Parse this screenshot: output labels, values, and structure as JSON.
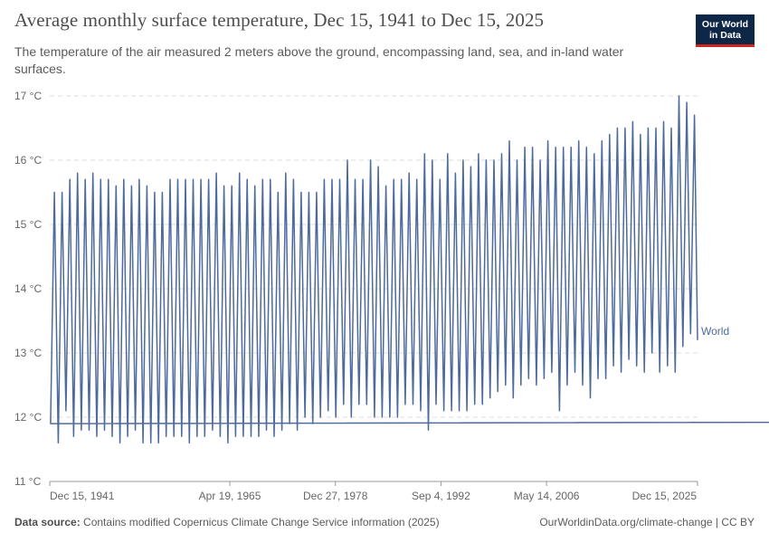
{
  "header": {
    "title": "Average monthly surface temperature, Dec 15, 1941 to Dec 15, 2025",
    "subtitle": "The temperature of the air measured 2 meters above the ground, encompassing land, sea, and in-land water surfaces."
  },
  "logo": {
    "line1": "Our World",
    "line2": "in Data",
    "background": "#0f2747",
    "accent": "#ce261e"
  },
  "footer": {
    "source_label": "Data source:",
    "source_text": "Contains modified Copernicus Climate Change Service information (2025)",
    "link_text": "OurWorldinData.org/climate-change | CC BY"
  },
  "chart_data": {
    "type": "line",
    "xlabel": "",
    "ylabel": "",
    "ylim": [
      11,
      17
    ],
    "grid": true,
    "line_color": "#4c6a9c",
    "y_ticks": [
      11,
      12,
      13,
      14,
      15,
      16,
      17
    ],
    "y_tick_labels": [
      "11 °C",
      "12 °C",
      "13 °C",
      "14 °C",
      "15 °C",
      "16 °C",
      "17 °C"
    ],
    "x_ticks": [
      {
        "label": "Dec 15, 1941",
        "year": 1941.95
      },
      {
        "label": "Apr 19, 1965",
        "year": 1965.3
      },
      {
        "label": "Dec 27, 1978",
        "year": 1978.99
      },
      {
        "label": "Sep 4, 1992",
        "year": 1992.68
      },
      {
        "label": "May 14, 2006",
        "year": 2006.37
      },
      {
        "label": "Dec 15, 2025",
        "year": 2025.95
      }
    ],
    "x_range": [
      "Dec 15, 1941",
      "Dec 15, 2025"
    ],
    "series": [
      {
        "name": "World",
        "monthly_pattern": "12 °C minimum around Jan, peak in Jul/Aug",
        "annual_peaks": [
          {
            "year": 1942,
            "value": 15.5
          },
          {
            "year": 1943,
            "value": 15.5
          },
          {
            "year": 1944,
            "value": 15.7
          },
          {
            "year": 1945,
            "value": 15.8
          },
          {
            "year": 1946,
            "value": 15.7
          },
          {
            "year": 1947,
            "value": 15.8
          },
          {
            "year": 1948,
            "value": 15.7
          },
          {
            "year": 1949,
            "value": 15.7
          },
          {
            "year": 1950,
            "value": 15.6
          },
          {
            "year": 1951,
            "value": 15.7
          },
          {
            "year": 1952,
            "value": 15.6
          },
          {
            "year": 1953,
            "value": 15.7
          },
          {
            "year": 1954,
            "value": 15.6
          },
          {
            "year": 1955,
            "value": 15.5
          },
          {
            "year": 1956,
            "value": 15.5
          },
          {
            "year": 1957,
            "value": 15.7
          },
          {
            "year": 1958,
            "value": 15.7
          },
          {
            "year": 1959,
            "value": 15.7
          },
          {
            "year": 1960,
            "value": 15.7
          },
          {
            "year": 1961,
            "value": 15.7
          },
          {
            "year": 1962,
            "value": 15.7
          },
          {
            "year": 1963,
            "value": 15.8
          },
          {
            "year": 1964,
            "value": 15.6
          },
          {
            "year": 1965,
            "value": 15.6
          },
          {
            "year": 1966,
            "value": 15.8
          },
          {
            "year": 1967,
            "value": 15.7
          },
          {
            "year": 1968,
            "value": 15.6
          },
          {
            "year": 1969,
            "value": 15.7
          },
          {
            "year": 1970,
            "value": 15.7
          },
          {
            "year": 1971,
            "value": 15.5
          },
          {
            "year": 1972,
            "value": 15.8
          },
          {
            "year": 1973,
            "value": 15.7
          },
          {
            "year": 1974,
            "value": 15.5
          },
          {
            "year": 1975,
            "value": 15.5
          },
          {
            "year": 1976,
            "value": 15.5
          },
          {
            "year": 1977,
            "value": 15.7
          },
          {
            "year": 1978,
            "value": 15.7
          },
          {
            "year": 1979,
            "value": 15.7
          },
          {
            "year": 1980,
            "value": 16.0
          },
          {
            "year": 1981,
            "value": 15.7
          },
          {
            "year": 1982,
            "value": 15.7
          },
          {
            "year": 1983,
            "value": 16.0
          },
          {
            "year": 1984,
            "value": 15.9
          },
          {
            "year": 1985,
            "value": 15.6
          },
          {
            "year": 1986,
            "value": 15.7
          },
          {
            "year": 1987,
            "value": 15.7
          },
          {
            "year": 1988,
            "value": 15.8
          },
          {
            "year": 1989,
            "value": 15.7
          },
          {
            "year": 1990,
            "value": 16.1
          },
          {
            "year": 1991,
            "value": 16.0
          },
          {
            "year": 1992,
            "value": 15.7
          },
          {
            "year": 1993,
            "value": 16.1
          },
          {
            "year": 1994,
            "value": 15.8
          },
          {
            "year": 1995,
            "value": 16.0
          },
          {
            "year": 1996,
            "value": 15.9
          },
          {
            "year": 1997,
            "value": 16.1
          },
          {
            "year": 1998,
            "value": 16.0
          },
          {
            "year": 1999,
            "value": 16.0
          },
          {
            "year": 2000,
            "value": 16.1
          },
          {
            "year": 2001,
            "value": 16.3
          },
          {
            "year": 2002,
            "value": 16.0
          },
          {
            "year": 2003,
            "value": 16.2
          },
          {
            "year": 2004,
            "value": 16.2
          },
          {
            "year": 2005,
            "value": 16.0
          },
          {
            "year": 2006,
            "value": 16.3
          },
          {
            "year": 2007,
            "value": 16.2
          },
          {
            "year": 2008,
            "value": 16.2
          },
          {
            "year": 2009,
            "value": 16.2
          },
          {
            "year": 2010,
            "value": 16.3
          },
          {
            "year": 2011,
            "value": 16.2
          },
          {
            "year": 2012,
            "value": 16.1
          },
          {
            "year": 2013,
            "value": 16.3
          },
          {
            "year": 2014,
            "value": 16.4
          },
          {
            "year": 2015,
            "value": 16.5
          },
          {
            "year": 2016,
            "value": 16.5
          },
          {
            "year": 2017,
            "value": 16.6
          },
          {
            "year": 2018,
            "value": 16.4
          },
          {
            "year": 2019,
            "value": 16.5
          },
          {
            "year": 2020,
            "value": 16.5
          },
          {
            "year": 2021,
            "value": 16.6
          },
          {
            "year": 2022,
            "value": 16.5
          },
          {
            "year": 2023,
            "value": 17.0
          },
          {
            "year": 2024,
            "value": 16.9
          },
          {
            "year": 2025,
            "value": 16.7
          }
        ],
        "annual_troughs": [
          {
            "year": 1942,
            "value": 11.9
          },
          {
            "year": 1943,
            "value": 11.6
          },
          {
            "year": 1944,
            "value": 12.1
          },
          {
            "year": 1945,
            "value": 11.7
          },
          {
            "year": 1946,
            "value": 11.8
          },
          {
            "year": 1947,
            "value": 11.8
          },
          {
            "year": 1948,
            "value": 11.7
          },
          {
            "year": 1949,
            "value": 11.8
          },
          {
            "year": 1950,
            "value": 11.7
          },
          {
            "year": 1951,
            "value": 11.6
          },
          {
            "year": 1952,
            "value": 11.7
          },
          {
            "year": 1953,
            "value": 11.8
          },
          {
            "year": 1954,
            "value": 11.6
          },
          {
            "year": 1955,
            "value": 11.6
          },
          {
            "year": 1956,
            "value": 11.6
          },
          {
            "year": 1957,
            "value": 11.7
          },
          {
            "year": 1958,
            "value": 11.7
          },
          {
            "year": 1959,
            "value": 11.7
          },
          {
            "year": 1960,
            "value": 11.6
          },
          {
            "year": 1961,
            "value": 11.7
          },
          {
            "year": 1962,
            "value": 11.7
          },
          {
            "year": 1963,
            "value": 11.8
          },
          {
            "year": 1964,
            "value": 11.7
          },
          {
            "year": 1965,
            "value": 11.6
          },
          {
            "year": 1966,
            "value": 11.7
          },
          {
            "year": 1967,
            "value": 11.7
          },
          {
            "year": 1968,
            "value": 11.7
          },
          {
            "year": 1969,
            "value": 11.7
          },
          {
            "year": 1970,
            "value": 11.8
          },
          {
            "year": 1971,
            "value": 11.7
          },
          {
            "year": 1972,
            "value": 11.8
          },
          {
            "year": 1973,
            "value": 11.9
          },
          {
            "year": 1974,
            "value": 11.8
          },
          {
            "year": 1975,
            "value": 12.0
          },
          {
            "year": 1976,
            "value": 11.9
          },
          {
            "year": 1977,
            "value": 12.0
          },
          {
            "year": 1978,
            "value": 12.1
          },
          {
            "year": 1979,
            "value": 12.0
          },
          {
            "year": 1980,
            "value": 12.2
          },
          {
            "year": 1981,
            "value": 12.0
          },
          {
            "year": 1982,
            "value": 12.2
          },
          {
            "year": 1983,
            "value": 12.2
          },
          {
            "year": 1984,
            "value": 12.0
          },
          {
            "year": 1985,
            "value": 12.0
          },
          {
            "year": 1986,
            "value": 12.0
          },
          {
            "year": 1987,
            "value": 12.0
          },
          {
            "year": 1988,
            "value": 12.2
          },
          {
            "year": 1989,
            "value": 12.2
          },
          {
            "year": 1990,
            "value": 12.1
          },
          {
            "year": 1991,
            "value": 11.8
          },
          {
            "year": 1992,
            "value": 12.2
          },
          {
            "year": 1993,
            "value": 12.1
          },
          {
            "year": 1994,
            "value": 12.1
          },
          {
            "year": 1995,
            "value": 12.1
          },
          {
            "year": 1996,
            "value": 12.1
          },
          {
            "year": 1997,
            "value": 12.2
          },
          {
            "year": 1998,
            "value": 12.2
          },
          {
            "year": 1999,
            "value": 12.3
          },
          {
            "year": 2000,
            "value": 12.4
          },
          {
            "year": 2001,
            "value": 12.5
          },
          {
            "year": 2002,
            "value": 12.3
          },
          {
            "year": 2003,
            "value": 12.5
          },
          {
            "year": 2004,
            "value": 12.6
          },
          {
            "year": 2005,
            "value": 12.5
          },
          {
            "year": 2006,
            "value": 12.6
          },
          {
            "year": 2007,
            "value": 12.7
          },
          {
            "year": 2008,
            "value": 12.1
          },
          {
            "year": 2009,
            "value": 12.5
          },
          {
            "year": 2010,
            "value": 12.7
          },
          {
            "year": 2011,
            "value": 12.5
          },
          {
            "year": 2012,
            "value": 12.3
          },
          {
            "year": 2013,
            "value": 12.6
          },
          {
            "year": 2014,
            "value": 12.6
          },
          {
            "year": 2015,
            "value": 12.8
          },
          {
            "year": 2016,
            "value": 12.7
          },
          {
            "year": 2017,
            "value": 12.9
          },
          {
            "year": 2018,
            "value": 12.8
          },
          {
            "year": 2019,
            "value": 12.7
          },
          {
            "year": 2020,
            "value": 13.0
          },
          {
            "year": 2021,
            "value": 12.7
          },
          {
            "year": 2022,
            "value": 12.8
          },
          {
            "year": 2023,
            "value": 12.7
          },
          {
            "year": 2024,
            "value": 13.1
          },
          {
            "year": 2025,
            "value": 13.3
          }
        ],
        "end_value": 13.2
      }
    ]
  }
}
